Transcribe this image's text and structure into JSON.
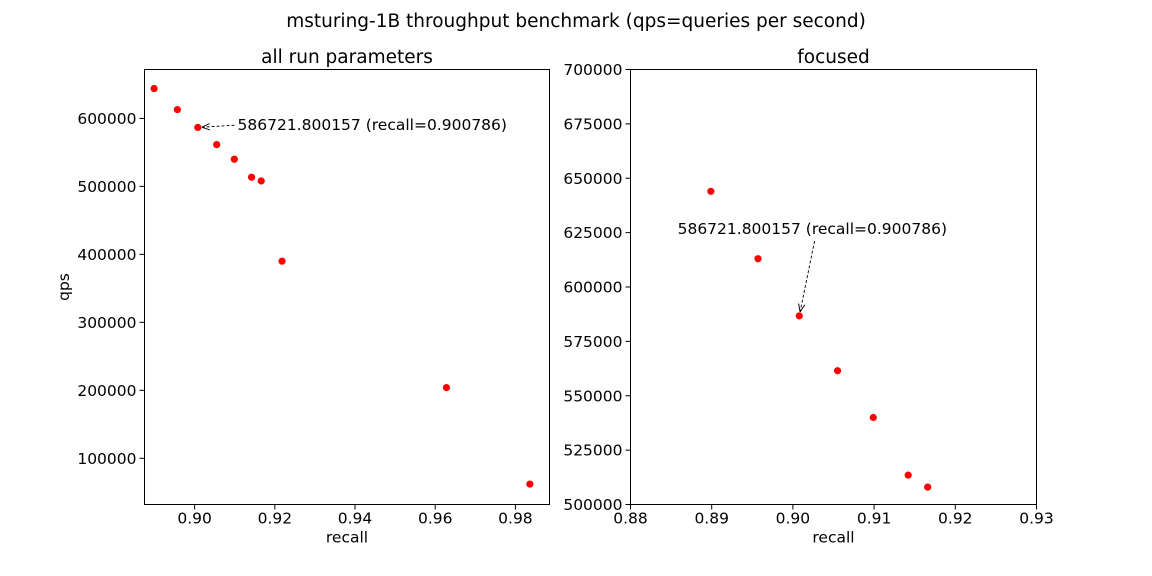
{
  "figure_title": "msturing-1B throughput benchmark (qps=queries per second)",
  "chart_data": [
    {
      "type": "scatter",
      "title": "all run parameters",
      "xlabel": "recall",
      "ylabel": "qps",
      "xlim": [
        0.8875,
        0.9885
      ],
      "ylim": [
        32000,
        672000
      ],
      "xticks": [
        0.9,
        0.92,
        0.94,
        0.96,
        0.98
      ],
      "xtick_labels": [
        "0.90",
        "0.92",
        "0.94",
        "0.96",
        "0.98"
      ],
      "yticks": [
        100000,
        200000,
        300000,
        400000,
        500000,
        600000
      ],
      "ytick_labels": [
        "100000",
        "200000",
        "300000",
        "400000",
        "500000",
        "600000"
      ],
      "marker_color": "#ff0000",
      "x": [
        0.8899,
        0.8957,
        0.900786,
        0.9055,
        0.9099,
        0.9142,
        0.9166,
        0.9218,
        0.9628,
        0.9836
      ],
      "y": [
        644000,
        613000,
        586721.8,
        561500,
        540000,
        513500,
        508000,
        390000,
        204000,
        62000
      ],
      "annotation": {
        "text": "586721.800157 (recall=0.900786)",
        "x": 0.900786,
        "y": 586721.8,
        "text_x": 0.9107,
        "text_y": 590000
      }
    },
    {
      "type": "scatter",
      "title": "focused",
      "xlabel": "recall",
      "ylabel": "",
      "xlim": [
        0.88,
        0.93
      ],
      "ylim": [
        500000,
        700000
      ],
      "xticks": [
        0.88,
        0.89,
        0.9,
        0.91,
        0.92,
        0.93
      ],
      "xtick_labels": [
        "0.88",
        "0.89",
        "0.90",
        "0.91",
        "0.92",
        "0.93"
      ],
      "yticks": [
        500000,
        525000,
        550000,
        575000,
        600000,
        625000,
        650000,
        675000,
        700000
      ],
      "ytick_labels": [
        "500000",
        "525000",
        "550000",
        "575000",
        "600000",
        "625000",
        "650000",
        "675000",
        "700000"
      ],
      "marker_color": "#ff0000",
      "x": [
        0.8899,
        0.8957,
        0.900786,
        0.9055,
        0.9099,
        0.9142,
        0.9166
      ],
      "y": [
        644000,
        613000,
        586721.8,
        561500,
        540000,
        513500,
        508000
      ],
      "annotation": {
        "text": "586721.800157 (recall=0.900786)",
        "x": 0.900786,
        "y": 586721.8,
        "text_x": 0.8858,
        "text_y": 626700
      }
    }
  ]
}
